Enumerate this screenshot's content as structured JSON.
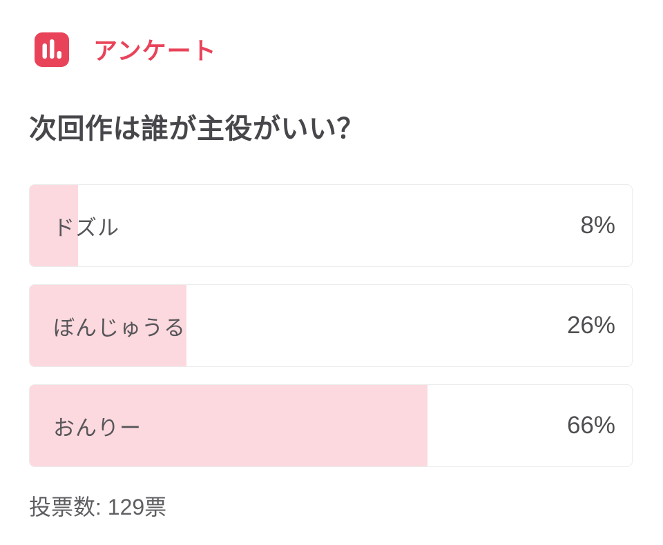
{
  "header": {
    "title": "アンケート",
    "icon_name": "bar-chart-icon",
    "accent_color": "#e9435a"
  },
  "poll": {
    "question": "次回作は誰が主役がいい？",
    "options": [
      {
        "label": "ドズル",
        "percent": 8,
        "percent_label": "8%"
      },
      {
        "label": "ぼんじゅうる",
        "percent": 26,
        "percent_label": "26%"
      },
      {
        "label": "おんりー",
        "percent": 66,
        "percent_label": "66%"
      }
    ],
    "total_votes": 129,
    "total_votes_label": "投票数: 129票",
    "bar_fill_color": "#fcd9de"
  },
  "chart_data": {
    "type": "bar",
    "orientation": "horizontal",
    "title": "次回作は誰が主役がいい？",
    "categories": [
      "ドズル",
      "ぼんじゅうる",
      "おんりー"
    ],
    "values": [
      8,
      26,
      66
    ],
    "unit": "%",
    "xlim": [
      0,
      100
    ],
    "annotations": [
      "投票数: 129票"
    ]
  }
}
